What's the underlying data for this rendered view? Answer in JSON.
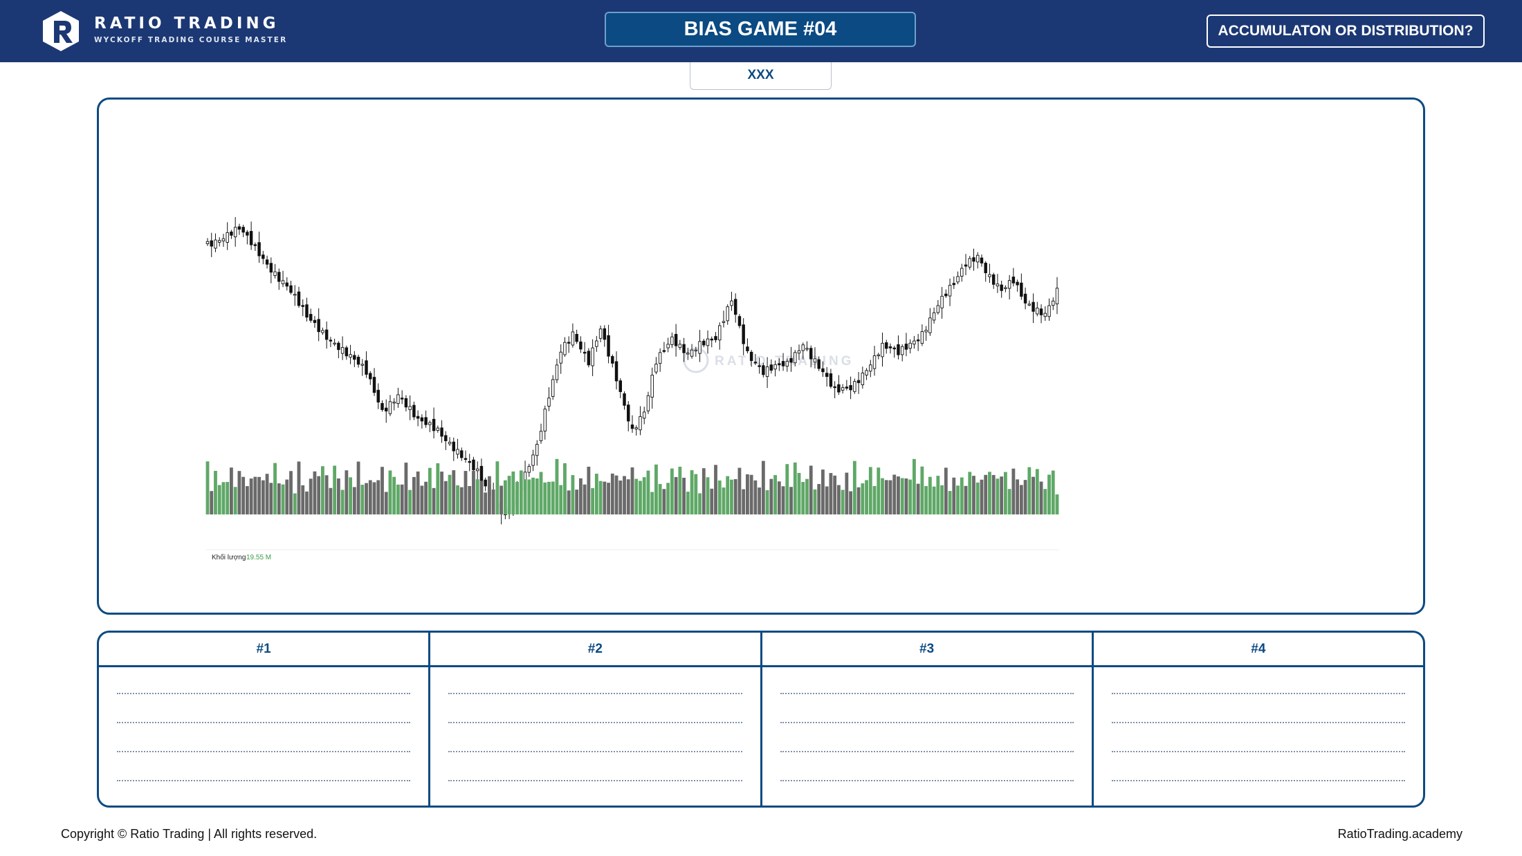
{
  "header": {
    "brand_name": "RATIO TRADING",
    "brand_tagline": "WYCKOFF TRADING COURSE MASTER",
    "game_title": "BIAS GAME #04",
    "question_button": "ACCUMULATON OR DISTRIBUTION?"
  },
  "ticker_label": "XXX",
  "chart": {
    "watermark": "RATIO TRADING",
    "volume_label": "Khối lượng",
    "volume_value": "19.55 M",
    "up_color": "#ffffff",
    "down_color": "#111111",
    "volume_up_color": "#5fa867",
    "volume_down_color": "#6a6a6a"
  },
  "chart_data": {
    "type": "candlestick",
    "volume_label": "Khối lượng",
    "volume_last": "19.55 M",
    "price_path": [
      [
        0,
        0.875
      ],
      [
        8,
        0.91
      ],
      [
        12,
        0.855
      ],
      [
        20,
        0.74
      ],
      [
        25,
        0.64
      ],
      [
        32,
        0.57
      ],
      [
        40,
        0.47
      ],
      [
        44,
        0.36
      ],
      [
        48,
        0.41
      ],
      [
        53,
        0.32
      ],
      [
        58,
        0.3
      ],
      [
        62,
        0.25
      ],
      [
        68,
        0.16
      ],
      [
        72,
        0.07
      ],
      [
        75,
        0.05
      ],
      [
        79,
        0.13
      ],
      [
        83,
        0.24
      ],
      [
        86,
        0.4
      ],
      [
        89,
        0.55
      ],
      [
        92,
        0.6
      ],
      [
        96,
        0.5
      ],
      [
        99,
        0.6
      ],
      [
        103,
        0.46
      ],
      [
        107,
        0.3
      ],
      [
        110,
        0.35
      ],
      [
        113,
        0.5
      ],
      [
        117,
        0.58
      ],
      [
        121,
        0.54
      ],
      [
        124,
        0.56
      ],
      [
        128,
        0.57
      ],
      [
        132,
        0.7
      ],
      [
        136,
        0.54
      ],
      [
        140,
        0.47
      ],
      [
        146,
        0.5
      ],
      [
        150,
        0.57
      ],
      [
        154,
        0.49
      ],
      [
        158,
        0.41
      ],
      [
        162,
        0.43
      ],
      [
        166,
        0.49
      ],
      [
        170,
        0.55
      ],
      [
        174,
        0.53
      ],
      [
        180,
        0.6
      ],
      [
        184,
        0.68
      ],
      [
        188,
        0.74
      ],
      [
        191,
        0.81
      ],
      [
        194,
        0.84
      ],
      [
        197,
        0.77
      ],
      [
        200,
        0.72
      ],
      [
        203,
        0.75
      ],
      [
        206,
        0.69
      ],
      [
        211,
        0.66
      ],
      [
        214,
        0.72
      ]
    ],
    "volume_pattern": [
      0.5,
      0.3,
      0.6,
      0.35,
      0.25,
      0.45,
      0.4,
      0.3,
      0.55,
      0.35,
      0.28,
      0.4,
      0.32,
      0.5,
      0.38,
      0.3,
      0.45,
      0.6,
      0.35,
      0.4,
      0.5,
      0.33,
      0.28,
      0.55,
      0.42,
      0.3,
      0.5,
      0.38,
      0.62,
      0.45
    ]
  },
  "notes": {
    "columns": [
      "#1",
      "#2",
      "#3",
      "#4"
    ]
  },
  "footer": {
    "copyright": "Copyright © Ratio Trading | All rights reserved.",
    "site": "RatioTrading.academy"
  }
}
